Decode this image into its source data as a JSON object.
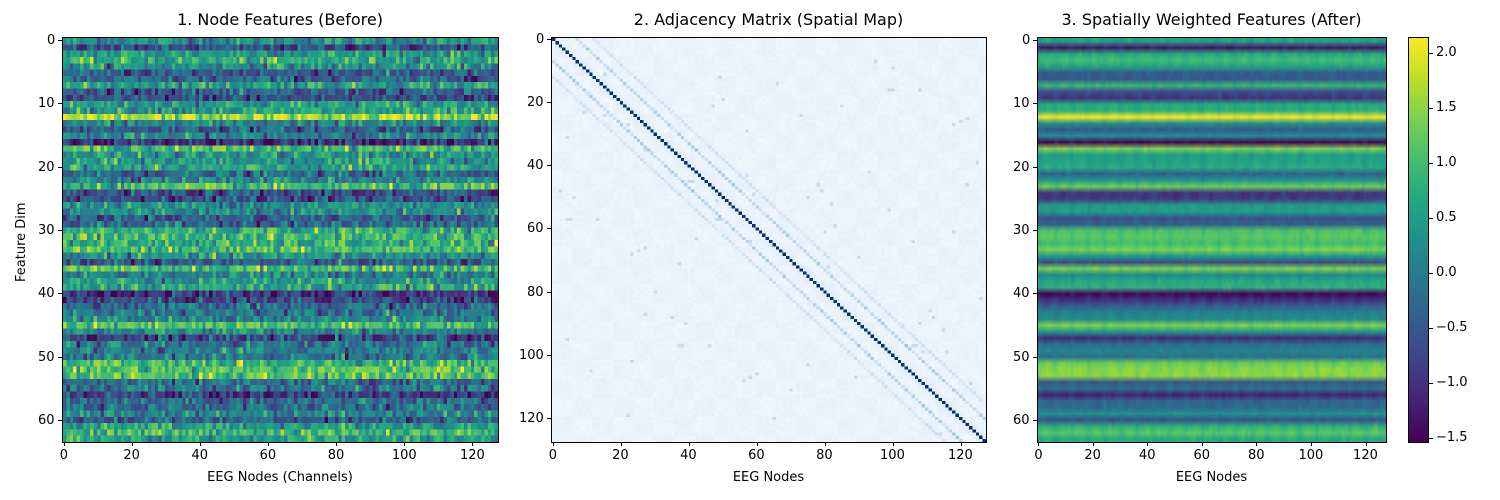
{
  "chart_data": [
    {
      "type": "heatmap",
      "title": "1. Node Features (Before)",
      "xlabel": "EEG Nodes (Channels)",
      "ylabel": "Feature Dim",
      "x_ticks": [
        0,
        20,
        40,
        60,
        80,
        100,
        120
      ],
      "y_ticks": [
        0,
        10,
        20,
        30,
        40,
        50,
        60
      ],
      "shape": [
        64,
        128
      ],
      "colormap": "viridis",
      "vmin": -1.55,
      "vmax": 2.15,
      "row_means": [
        0.3,
        -0.7,
        0.5,
        0.7,
        0.3,
        -0.5,
        -0.4,
        0.6,
        -0.5,
        -0.7,
        0.5,
        0.5,
        1.6,
        0.1,
        -0.4,
        0.1,
        -1.0,
        1.0,
        0.3,
        0.4,
        0.5,
        -0.3,
        0.2,
        0.9,
        -0.7,
        -0.6,
        0.3,
        0.3,
        -0.4,
        -0.3,
        0.8,
        0.9,
        0.7,
        1.0,
        0.3,
        -0.5,
        1.0,
        0.1,
        0.5,
        0.6,
        -1.0,
        -0.7,
        -0.3,
        0.0,
        0.1,
        1.0,
        0.2,
        -0.8,
        -0.1,
        0.0,
        -0.1,
        0.9,
        1.1,
        1.1,
        -0.3,
        -0.1,
        -0.9,
        -0.2,
        -0.2,
        0.2,
        -0.4,
        0.5,
        0.9,
        0.5
      ],
      "noise_std": 0.45,
      "note": "Per-row means estimated; per-cell noise is random texture"
    },
    {
      "type": "heatmap",
      "title": "2. Adjacency Matrix (Spatial Map)",
      "xlabel": "EEG Nodes",
      "ylabel": "",
      "x_ticks": [
        0,
        20,
        40,
        60,
        80,
        100,
        120
      ],
      "y_ticks": [
        0,
        20,
        40,
        60,
        80,
        100,
        120
      ],
      "shape": [
        128,
        128
      ],
      "colormap": "Blues",
      "diagonal_value": 1.0,
      "off_diagonal_bands": [
        {
          "offset": 7,
          "value": 0.35
        },
        {
          "offset": 12,
          "value": 0.2
        }
      ],
      "background_value": 0.04,
      "block_size": 6
    },
    {
      "type": "heatmap",
      "title": "3. Spatially Weighted Features (After)",
      "xlabel": "EEG Nodes",
      "ylabel": "",
      "x_ticks": [
        0,
        20,
        40,
        60,
        80,
        100,
        120
      ],
      "y_ticks": [
        0,
        10,
        20,
        30,
        40,
        50,
        60
      ],
      "shape": [
        64,
        128
      ],
      "colormap": "viridis",
      "vmin": -1.55,
      "vmax": 2.15,
      "row_means": [
        0.5,
        -1.2,
        0.6,
        0.9,
        0.5,
        -0.4,
        -0.4,
        0.8,
        -0.6,
        -0.9,
        0.6,
        0.7,
        2.0,
        0.2,
        -0.4,
        0.2,
        -1.4,
        1.3,
        0.4,
        0.5,
        0.6,
        -0.3,
        0.3,
        1.2,
        -0.9,
        -0.8,
        0.4,
        0.4,
        -0.5,
        -0.3,
        1.0,
        1.1,
        0.9,
        1.3,
        0.4,
        -0.6,
        1.3,
        0.1,
        0.6,
        0.7,
        -1.4,
        -0.9,
        -0.3,
        0.0,
        0.1,
        1.3,
        0.3,
        -1.0,
        -0.1,
        0.0,
        -0.1,
        1.2,
        1.4,
        1.4,
        -0.4,
        -0.1,
        -1.1,
        -0.2,
        -0.2,
        0.2,
        -0.5,
        0.7,
        1.1,
        0.6
      ],
      "column_period": 6,
      "column_modulation": 0.15,
      "colorbar": {
        "ticks": [
          2.0,
          1.5,
          1.0,
          0.5,
          0.0,
          -0.5,
          -1.0,
          -1.5
        ],
        "tick_labels": [
          "2.0",
          "1.5",
          "1.0",
          "0.5",
          "0.0",
          "−0.5",
          "−1.0",
          "−1.5"
        ],
        "min": -1.55,
        "max": 2.15
      }
    }
  ],
  "panels": {
    "p1": {
      "title": "1. Node Features (Before)",
      "xlabel": "EEG Nodes (Channels)",
      "ylabel": "Feature Dim"
    },
    "p2": {
      "title": "2. Adjacency Matrix (Spatial Map)",
      "xlabel": "EEG Nodes"
    },
    "p3": {
      "title": "3. Spatially Weighted Features (After)",
      "xlabel": "EEG Nodes"
    }
  }
}
